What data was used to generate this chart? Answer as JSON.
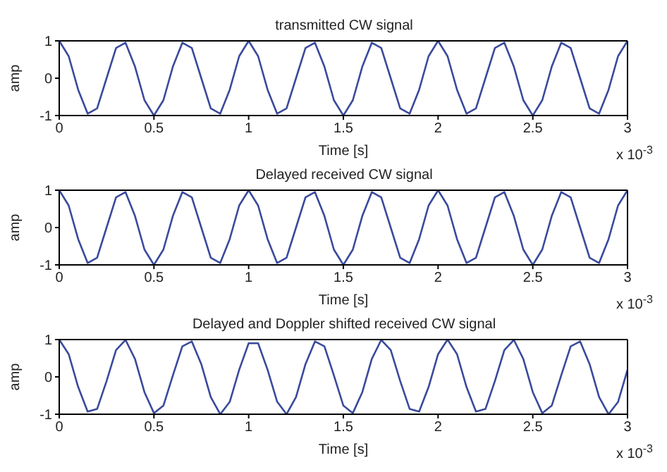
{
  "chart_data": [
    {
      "type": "line",
      "title": "transmitted CW signal",
      "xlabel": "Time [s]",
      "ylabel": "amp",
      "annotations": [
        "x 10$^{-3}$"
      ],
      "x": [
        0,
        0.05,
        0.1,
        0.15,
        0.2,
        0.25,
        0.3,
        0.35,
        0.4,
        0.45,
        0.5,
        0.55,
        0.6,
        0.65,
        0.7,
        0.75,
        0.8,
        0.85,
        0.9,
        0.95,
        1,
        1.05,
        1.1,
        1.15,
        1.2,
        1.25,
        1.3,
        1.35,
        1.4,
        1.45,
        1.5,
        1.55,
        1.6,
        1.65,
        1.7,
        1.75,
        1.8,
        1.85,
        1.9,
        1.95,
        2,
        2.05,
        2.1,
        2.15,
        2.2,
        2.25,
        2.3,
        2.35,
        2.4,
        2.45,
        2.5,
        2.55,
        2.6,
        2.65,
        2.7,
        2.75,
        2.8,
        2.85,
        2.9,
        2.95,
        3
      ],
      "series": [
        {
          "color": "#3a4a9c",
          "values": [
            1,
            0.59,
            -0.31,
            -0.95,
            -0.81,
            0,
            0.81,
            0.95,
            0.31,
            -0.59,
            -1,
            -0.59,
            0.31,
            0.95,
            0.81,
            0,
            -0.81,
            -0.95,
            -0.31,
            0.59,
            1,
            0.59,
            -0.31,
            -0.95,
            -0.81,
            0,
            0.81,
            0.95,
            0.31,
            -0.59,
            -1,
            -0.59,
            0.31,
            0.95,
            0.81,
            0,
            -0.81,
            -0.95,
            -0.31,
            0.59,
            1,
            0.59,
            -0.31,
            -0.95,
            -0.81,
            0,
            0.81,
            0.95,
            0.31,
            -0.59,
            -1,
            -0.59,
            0.31,
            0.95,
            0.81,
            0,
            -0.81,
            -0.95,
            -0.31,
            0.59,
            1
          ]
        }
      ],
      "xlim": [
        0,
        3
      ],
      "xticks": [
        0,
        0.5,
        1,
        1.5,
        2,
        2.5,
        3
      ],
      "ylim": [
        -1,
        1
      ],
      "yticks": [
        -1,
        0,
        1
      ],
      "grid": false,
      "legend": false,
      "marker": "none",
      "line_style": "solid"
    },
    {
      "type": "line",
      "title": "Delayed received  CW signal",
      "xlabel": "Time [s]",
      "ylabel": "amp",
      "annotations": [
        "x 10$^{-3}$"
      ],
      "x": [
        0,
        0.05,
        0.1,
        0.15,
        0.2,
        0.25,
        0.3,
        0.35,
        0.4,
        0.45,
        0.5,
        0.55,
        0.6,
        0.65,
        0.7,
        0.75,
        0.8,
        0.85,
        0.9,
        0.95,
        1,
        1.05,
        1.1,
        1.15,
        1.2,
        1.25,
        1.3,
        1.35,
        1.4,
        1.45,
        1.5,
        1.55,
        1.6,
        1.65,
        1.7,
        1.75,
        1.8,
        1.85,
        1.9,
        1.95,
        2,
        2.05,
        2.1,
        2.15,
        2.2,
        2.25,
        2.3,
        2.35,
        2.4,
        2.45,
        2.5,
        2.55,
        2.6,
        2.65,
        2.7,
        2.75,
        2.8,
        2.85,
        2.9,
        2.95,
        3
      ],
      "series": [
        {
          "color": "#3a4a9c",
          "values": [
            1,
            0.59,
            -0.31,
            -0.95,
            -0.81,
            0,
            0.81,
            0.95,
            0.31,
            -0.59,
            -1,
            -0.59,
            0.31,
            0.95,
            0.81,
            0,
            -0.81,
            -0.95,
            -0.31,
            0.59,
            1,
            0.59,
            -0.31,
            -0.95,
            -0.81,
            0,
            0.81,
            0.95,
            0.31,
            -0.59,
            -1,
            -0.59,
            0.31,
            0.95,
            0.81,
            0,
            -0.81,
            -0.95,
            -0.31,
            0.59,
            1,
            0.59,
            -0.31,
            -0.95,
            -0.81,
            0,
            0.81,
            0.95,
            0.31,
            -0.59,
            -1,
            -0.59,
            0.31,
            0.95,
            0.81,
            0,
            -0.81,
            -0.95,
            -0.31,
            0.59,
            1
          ]
        }
      ],
      "xlim": [
        0,
        3
      ],
      "xticks": [
        0,
        0.5,
        1,
        1.5,
        2,
        2.5,
        3
      ],
      "ylim": [
        -1,
        1
      ],
      "yticks": [
        -1,
        0,
        1
      ],
      "grid": false,
      "legend": false,
      "marker": "none",
      "line_style": "solid"
    },
    {
      "type": "line",
      "title": "Delayed and Doppler shifted received CW signal",
      "xlabel": "Time [s]",
      "ylabel": "amp",
      "annotations": [
        "x 10$^{-3}$"
      ],
      "x": [
        0,
        0.05,
        0.1,
        0.15,
        0.2,
        0.25,
        0.3,
        0.35,
        0.4,
        0.45,
        0.5,
        0.55,
        0.6,
        0.65,
        0.7,
        0.75,
        0.8,
        0.85,
        0.9,
        0.95,
        1,
        1.05,
        1.1,
        1.15,
        1.2,
        1.25,
        1.3,
        1.35,
        1.4,
        1.45,
        1.5,
        1.55,
        1.6,
        1.65,
        1.7,
        1.75,
        1.8,
        1.85,
        1.9,
        1.95,
        2,
        2.05,
        2.1,
        2.15,
        2.2,
        2.25,
        2.3,
        2.35,
        2.4,
        2.45,
        2.5,
        2.55,
        2.6,
        2.65,
        2.7,
        2.75,
        2.8,
        2.85,
        2.9,
        2.95,
        3
      ],
      "series": [
        {
          "color": "#3a4a9c",
          "values": [
            1,
            0.61,
            -0.27,
            -0.93,
            -0.86,
            -0.11,
            0.72,
            0.99,
            0.48,
            -0.41,
            -0.97,
            -0.77,
            0.04,
            0.82,
            0.95,
            0.34,
            -0.54,
            -1,
            -0.67,
            0.19,
            0.9,
            0.9,
            0.19,
            -0.66,
            -1,
            -0.54,
            0.34,
            0.95,
            0.82,
            0.04,
            -0.77,
            -0.97,
            -0.41,
            0.48,
            0.99,
            0.72,
            -0.11,
            -0.86,
            -0.93,
            -0.27,
            0.61,
            1,
            0.61,
            -0.27,
            -0.93,
            -0.86,
            -0.11,
            0.72,
            0.99,
            0.48,
            -0.41,
            -0.97,
            -0.77,
            0.04,
            0.82,
            0.95,
            0.34,
            -0.54,
            -1,
            -0.67,
            0.19
          ]
        }
      ],
      "xlim": [
        0,
        3
      ],
      "xticks": [
        0,
        0.5,
        1,
        1.5,
        2,
        2.5,
        3
      ],
      "ylim": [
        -1,
        1
      ],
      "yticks": [
        -1,
        0,
        1
      ],
      "grid": false,
      "legend": false,
      "marker": "none",
      "line_style": "solid"
    }
  ]
}
